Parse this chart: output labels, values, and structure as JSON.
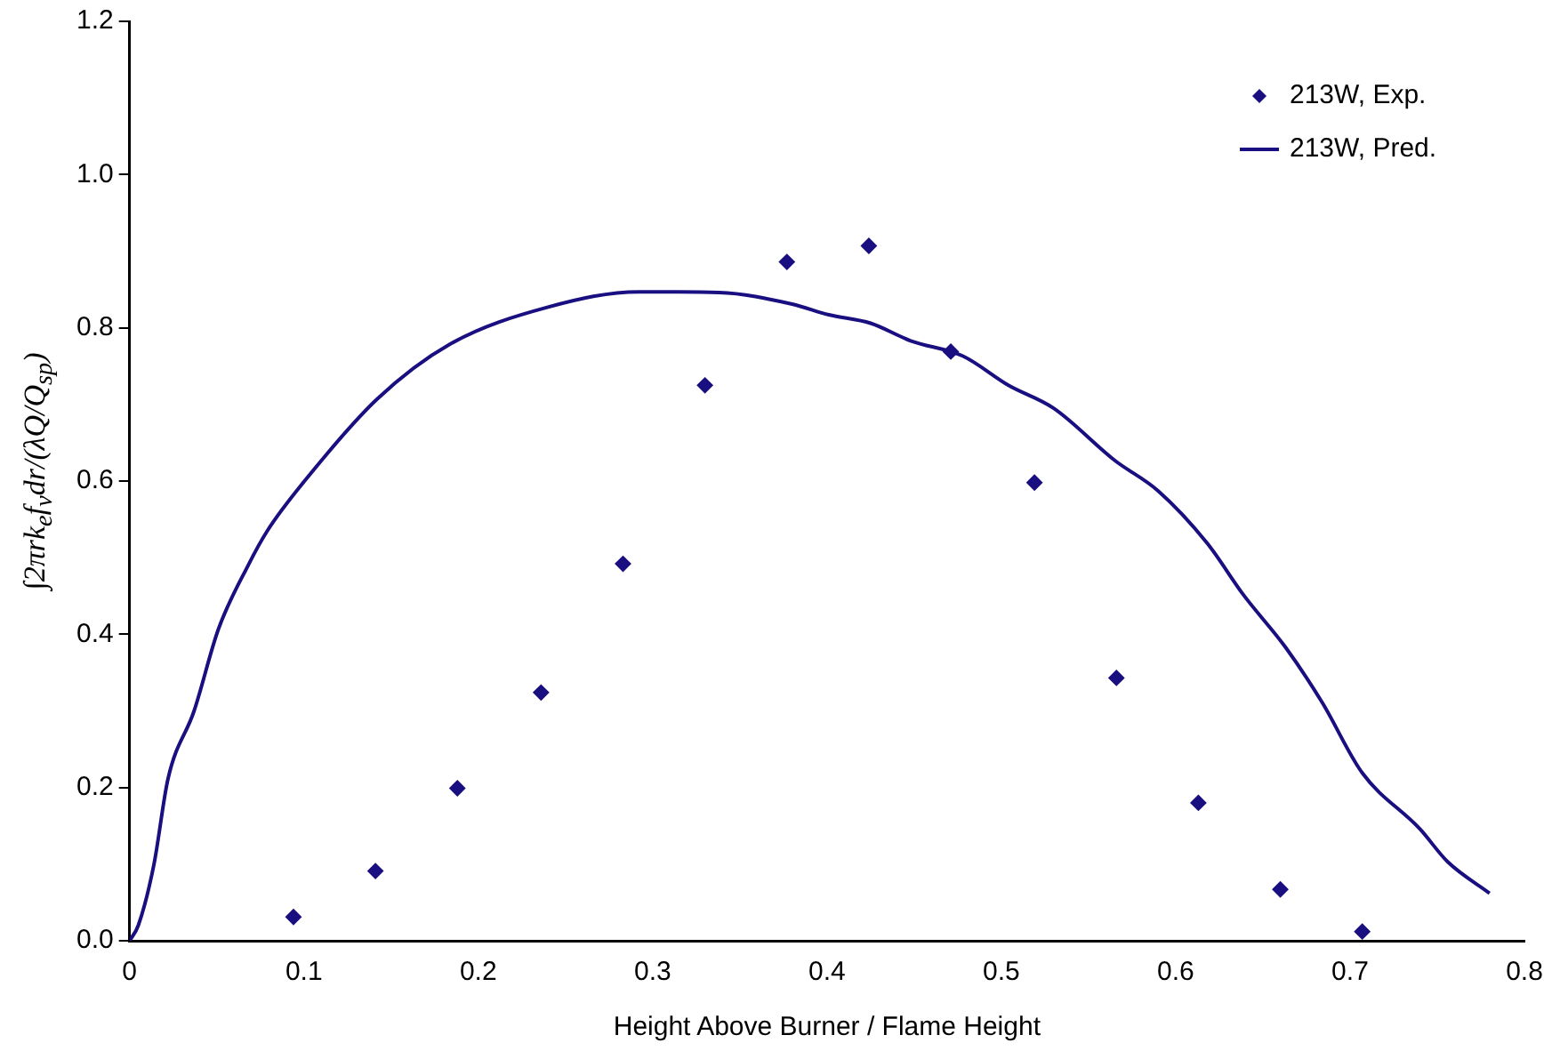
{
  "chart_data": {
    "type": "scatter",
    "xlabel": "Height Above Burner / Flame Height",
    "ylabel": "∫2πrk$_{e}$f$_{v}$dr/(λQ/Q$_{sp}$)",
    "xlim": [
      0,
      0.8
    ],
    "xticks": [
      {
        "value": 0,
        "label": "0"
      },
      0.1,
      0.2,
      0.3,
      0.4,
      0.5,
      0.6,
      0.7,
      0.8
    ],
    "ylim": [
      0,
      1.2
    ],
    "yticks": [
      {
        "value": 0,
        "label": "0.0"
      },
      0.2,
      0.4,
      0.6,
      0.8,
      {
        "value": 1,
        "label": "1.0"
      },
      1.2
    ],
    "grid": false,
    "legend": "top right",
    "marker": "diamond",
    "series": [
      {
        "name": "213W, Exp.",
        "color": "#1a0f80",
        "x": [
          0.094,
          0.141,
          0.188,
          0.236,
          0.283,
          0.33,
          0.377,
          0.424,
          0.471,
          0.519,
          0.566,
          0.613,
          0.66,
          0.707
        ],
        "values": [
          0.031,
          0.091,
          0.199,
          0.324,
          0.492,
          0.725,
          0.886,
          0.907,
          0.769,
          0.598,
          0.343,
          0.18,
          0.067,
          0.012
        ]
      },
      {
        "name": "213W, Pred.",
        "type": "line",
        "line_style": "solid",
        "marker": "none",
        "color": "#1a0f80",
        "x": [
          0,
          0.005,
          0.014,
          0.022,
          0.037,
          0.051,
          0.068,
          0.079,
          0.1,
          0.142,
          0.184,
          0.24,
          0.292,
          0.338,
          0.38,
          0.401,
          0.425,
          0.448,
          0.478,
          0.504,
          0.53,
          0.565,
          0.59,
          0.618,
          0.639,
          0.663,
          0.684,
          0.707,
          0.74,
          0.756,
          0.78
        ],
        "values": [
          0,
          0.02,
          0.1,
          0.211,
          0.3,
          0.407,
          0.49,
          0.535,
          0.599,
          0.707,
          0.779,
          0.827,
          0.847,
          0.846,
          0.831,
          0.817,
          0.806,
          0.783,
          0.763,
          0.725,
          0.695,
          0.627,
          0.587,
          0.519,
          0.451,
          0.383,
          0.311,
          0.219,
          0.146,
          0.103,
          0.062
        ]
      }
    ]
  }
}
